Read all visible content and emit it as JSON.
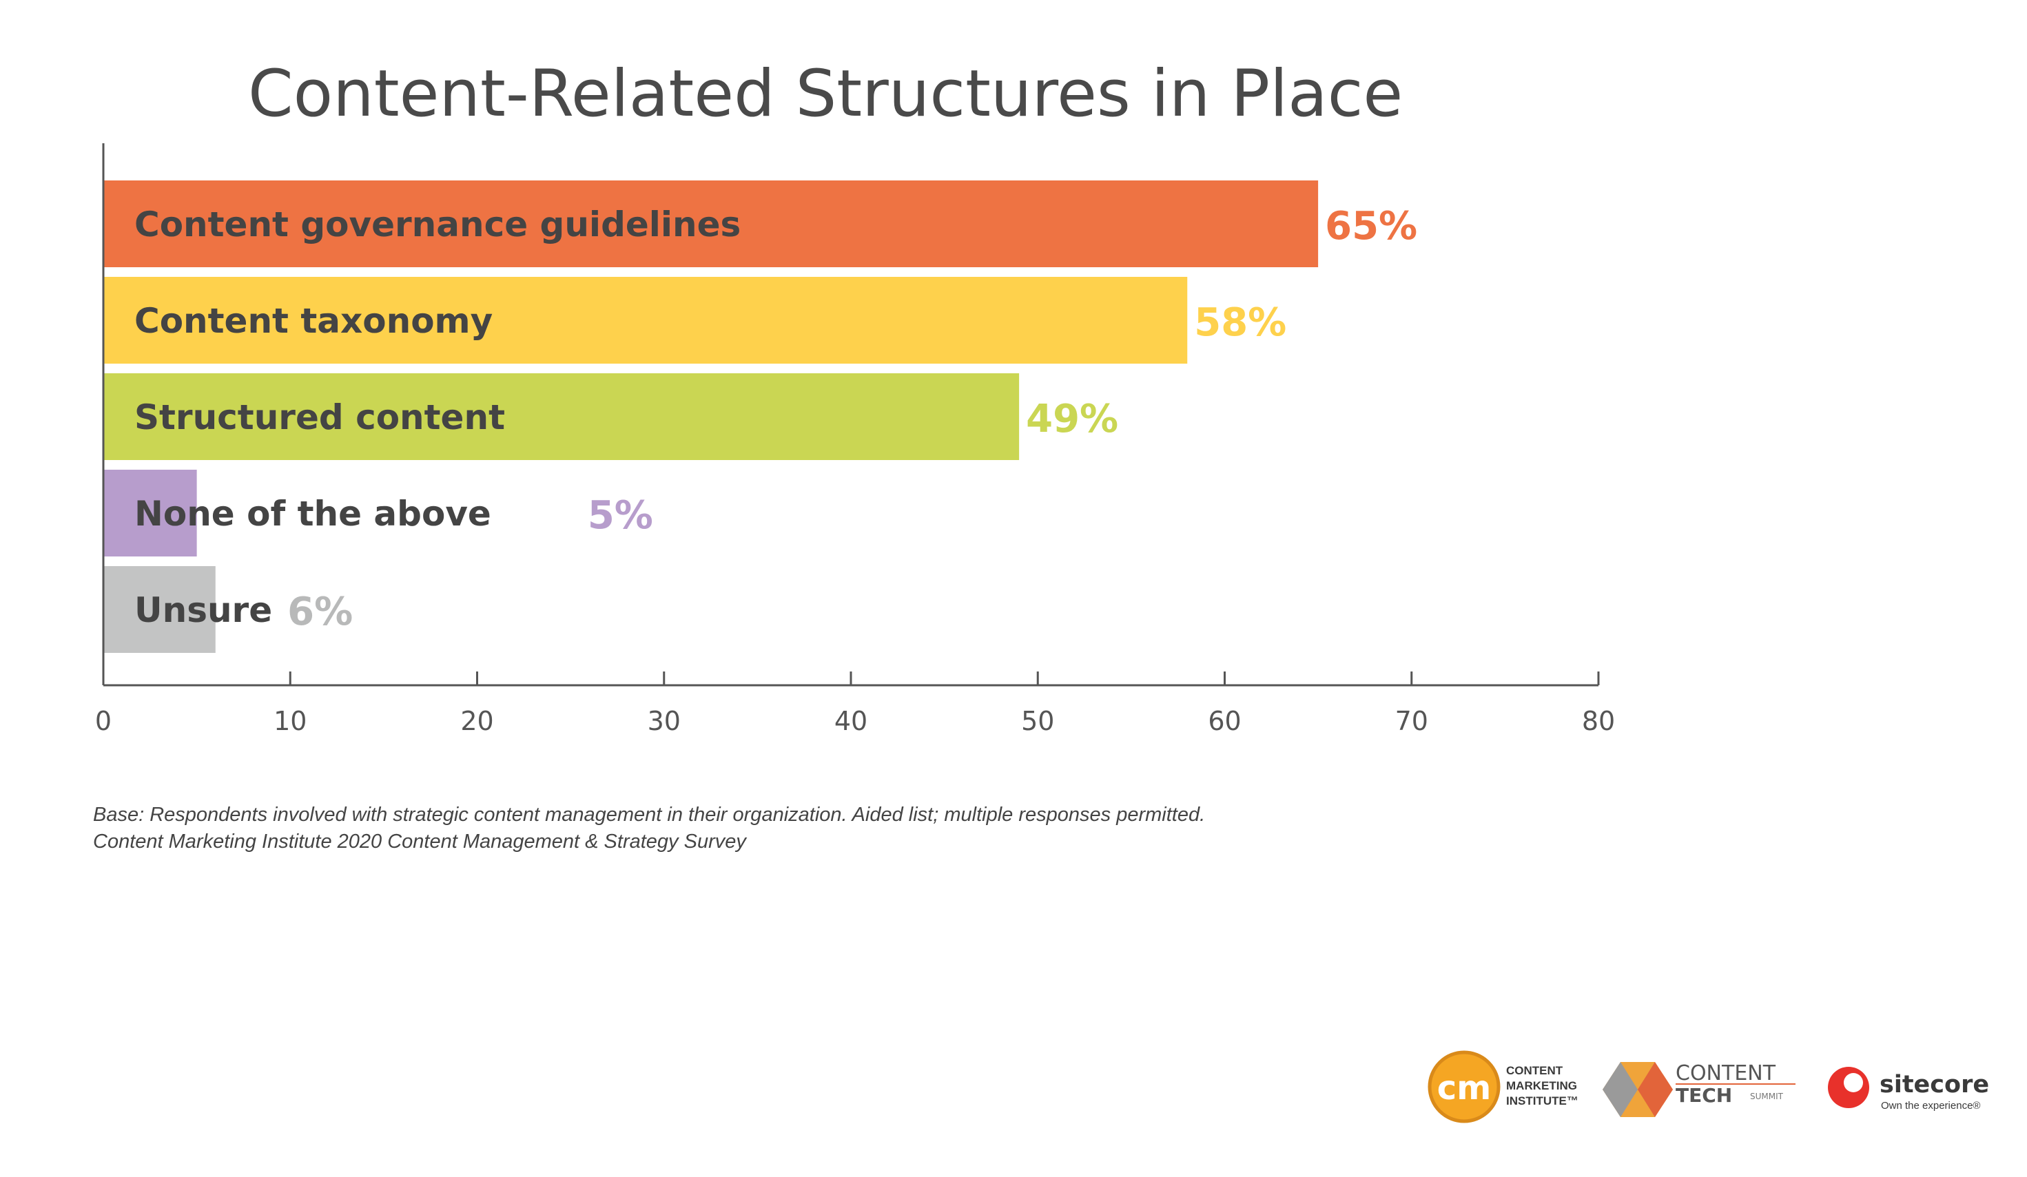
{
  "chart_data": {
    "type": "bar",
    "orientation": "horizontal",
    "title": "Content-Related Structures in Place",
    "categories": [
      "Content governance guidelines",
      "Content taxonomy",
      "Structured content",
      "None of the above",
      "Unsure"
    ],
    "values": [
      65,
      58,
      49,
      5,
      6
    ],
    "value_labels": [
      "65%",
      "58%",
      "49%",
      "5%",
      "6%"
    ],
    "colors": [
      "#ee7343",
      "#fed14c",
      "#cad653",
      "#b79dcc",
      "#c3c4c4"
    ],
    "xlim": [
      0,
      80
    ],
    "xticks": [
      "0",
      "10",
      "20",
      "30",
      "40",
      "50",
      "60",
      "70",
      "80"
    ],
    "grid": false,
    "legend": "none"
  },
  "footnote": {
    "line1": "Base: Respondents involved with strategic content management in their organization. Aided list; multiple responses permitted.",
    "line2": "Content Marketing Institute 2020 Content Management & Strategy Survey"
  },
  "logos": {
    "cmi": {
      "mark": "cm",
      "line1": "CONTENT",
      "line2": "MARKETING",
      "line3": "INSTITUTE™"
    },
    "contenttech": {
      "word1": "CONTENT",
      "word2": "TECH",
      "word3": "SUMMIT"
    },
    "sitecore": {
      "name": "sitecore",
      "tagline": "Own the experience®"
    }
  }
}
